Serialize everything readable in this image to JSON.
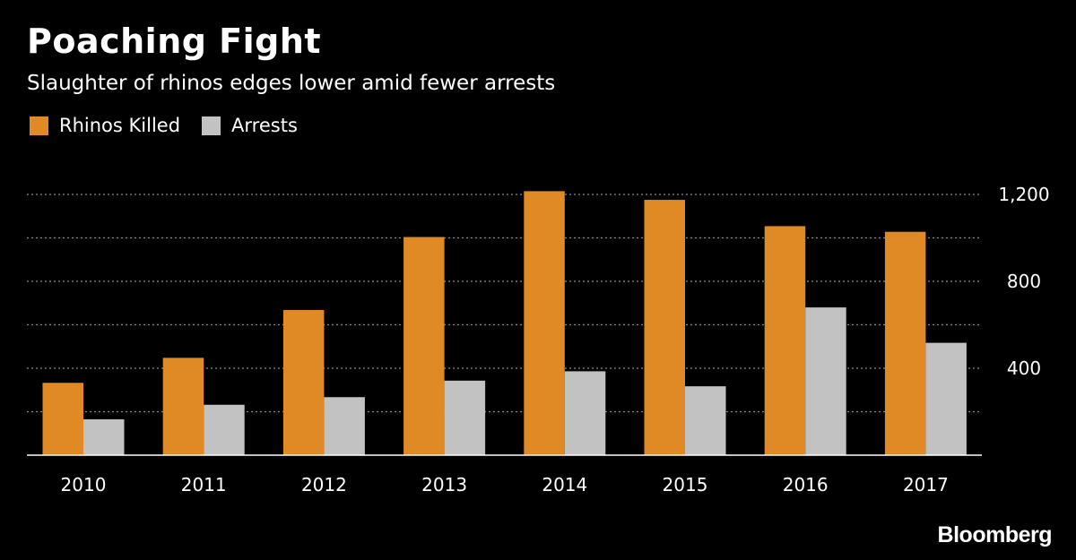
{
  "header": {
    "title": "Poaching Fight",
    "subtitle": "Slaughter of rhinos edges lower amid fewer arrests"
  },
  "brand": {
    "logo_text": "Bloomberg"
  },
  "colors": {
    "series_1": "#e08a25",
    "series_2": "#c2c2c2",
    "background": "#000000",
    "grid": "#8a8a8a"
  },
  "chart_data": {
    "type": "bar",
    "title": "Poaching Fight",
    "subtitle": "Slaughter of rhinos edges lower amid fewer arrests",
    "categories": [
      "2010",
      "2011",
      "2012",
      "2013",
      "2014",
      "2015",
      "2016",
      "2017"
    ],
    "series": [
      {
        "name": "Rhinos Killed",
        "values": [
          333,
          448,
          668,
          1004,
          1215,
          1175,
          1054,
          1028
        ]
      },
      {
        "name": "Arrests",
        "values": [
          165,
          232,
          267,
          343,
          386,
          317,
          680,
          517
        ]
      }
    ],
    "ylim": [
      0,
      1200
    ],
    "yticks": [
      400,
      800,
      1200
    ],
    "ytick_labels": [
      "400",
      "800",
      "1,200"
    ],
    "y_axis_side": "right",
    "xlabel": "",
    "ylabel": "",
    "grid": true,
    "legend_placement": "top-left"
  }
}
